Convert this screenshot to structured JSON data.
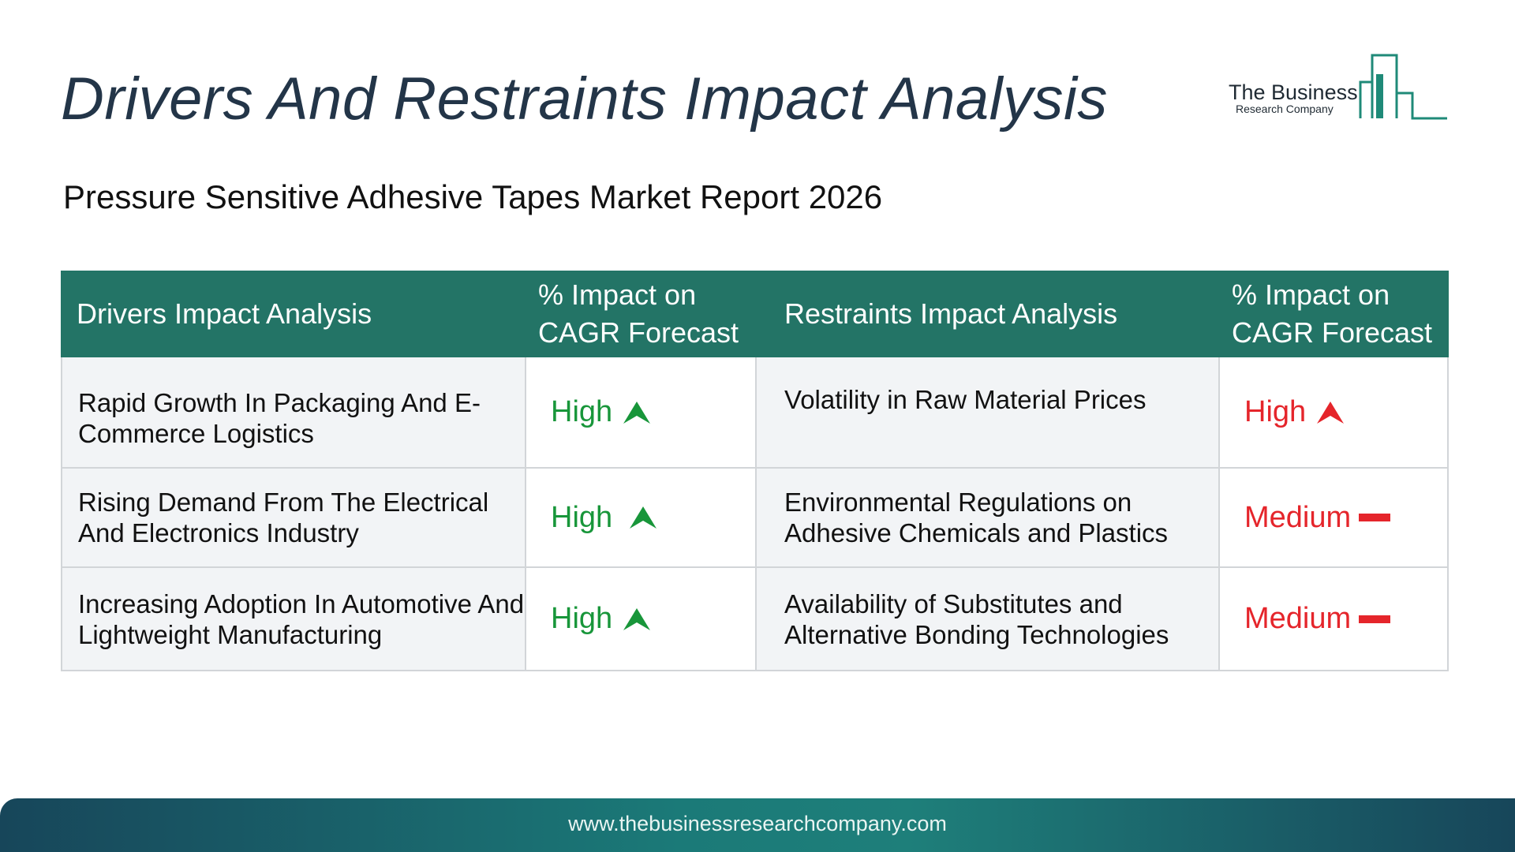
{
  "title": "Drivers And Restraints Impact Analysis",
  "subtitle": "Pressure Sensitive Adhesive Tapes Market Report 2026",
  "logo": {
    "name": "The Business",
    "tagline": "Research Company",
    "color": "#1f8a78"
  },
  "table": {
    "headers": {
      "drivers": "Drivers Impact Analysis",
      "drivers_impact_line1": "% Impact on",
      "drivers_impact_line2": "CAGR Forecast",
      "restraints": "Restraints Impact Analysis",
      "restraints_impact_line1": "% Impact on",
      "restraints_impact_line2": "CAGR Forecast"
    },
    "rows": [
      {
        "driver": "Rapid Growth In Packaging And E-Commerce Logistics",
        "driver_impact": "High",
        "driver_icon": "arrow-up-icon",
        "restraint": "Volatility in Raw Material Prices",
        "restraint_impact": "High",
        "restraint_icon": "arrow-up-icon"
      },
      {
        "driver": "Rising Demand From The Electrical And Electronics Industry",
        "driver_impact": "High",
        "driver_icon": "arrow-up-icon",
        "restraint": "Environmental Regulations on Adhesive Chemicals and Plastics",
        "restraint_impact": "Medium",
        "restraint_icon": "dash-icon"
      },
      {
        "driver": "Increasing Adoption In Automotive And Lightweight Manufacturing",
        "driver_impact": "High",
        "driver_icon": "arrow-up-icon",
        "restraint": "Availability of Substitutes and Alternative Bonding Technologies",
        "restraint_impact": "Medium",
        "restraint_icon": "dash-icon"
      }
    ]
  },
  "colors": {
    "header_bg": "#237466",
    "high_driver": "#18963a",
    "restraint": "#e5252b",
    "title": "#233548"
  },
  "footer": {
    "url": "www.thebusinessresearchcompany.com"
  }
}
